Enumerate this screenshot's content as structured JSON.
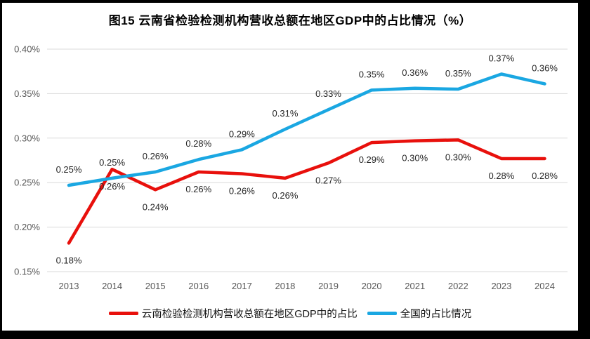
{
  "colors": {
    "frame_border": "#000000",
    "panel_background": "#ffffff",
    "gridline": "#d9d9d9",
    "axis_tick_text": "#595959",
    "data_label_text": "#262626",
    "series_red": "#e8100c",
    "series_blue": "#1aa7e2"
  },
  "chart_data": {
    "type": "line",
    "title": "图15 云南省检验检测机构营收总额在地区GDP中的占比情况（%）",
    "categories": [
      "2013",
      "2014",
      "2015",
      "2016",
      "2017",
      "2018",
      "2019",
      "2020",
      "2021",
      "2022",
      "2023",
      "2024"
    ],
    "series": [
      {
        "name": "云南检验检测机构营收总额在地区GDP中的占比",
        "color": "#e8100c",
        "values": [
          0.18,
          0.26,
          0.24,
          0.26,
          0.26,
          0.26,
          0.27,
          0.29,
          0.3,
          0.3,
          0.28,
          0.28
        ],
        "labels": [
          "0.18%",
          "0.26%",
          "0.24%",
          "0.26%",
          "0.26%",
          "0.26%",
          "0.27%",
          "0.29%",
          "0.30%",
          "0.30%",
          "0.28%",
          "0.28%"
        ],
        "plot_values": [
          0.182,
          0.265,
          0.242,
          0.262,
          0.26,
          0.255,
          0.272,
          0.295,
          0.297,
          0.298,
          0.277,
          0.277
        ],
        "label_position": "below"
      },
      {
        "name": "全国的占比情况",
        "color": "#1aa7e2",
        "values": [
          0.25,
          0.25,
          0.26,
          0.28,
          0.29,
          0.31,
          0.33,
          0.35,
          0.36,
          0.35,
          0.37,
          0.36
        ],
        "labels": [
          "0.25%",
          "0.25%",
          "0.26%",
          "0.28%",
          "0.29%",
          "0.31%",
          "0.33%",
          "0.35%",
          "0.36%",
          "0.35%",
          "0.37%",
          "0.36%"
        ],
        "plot_values": [
          0.247,
          0.255,
          0.262,
          0.276,
          0.287,
          0.31,
          0.332,
          0.354,
          0.356,
          0.355,
          0.372,
          0.361
        ],
        "label_position": "above"
      }
    ],
    "y_axis": {
      "min": 0.15,
      "max": 0.4,
      "tick_labels": [
        "0.40%",
        "0.35%",
        "0.30%",
        "0.25%",
        "0.20%",
        "0.15%"
      ],
      "tick_values": [
        0.4,
        0.35,
        0.3,
        0.25,
        0.2,
        0.15
      ]
    },
    "grid": true,
    "legend_position": "bottom"
  }
}
